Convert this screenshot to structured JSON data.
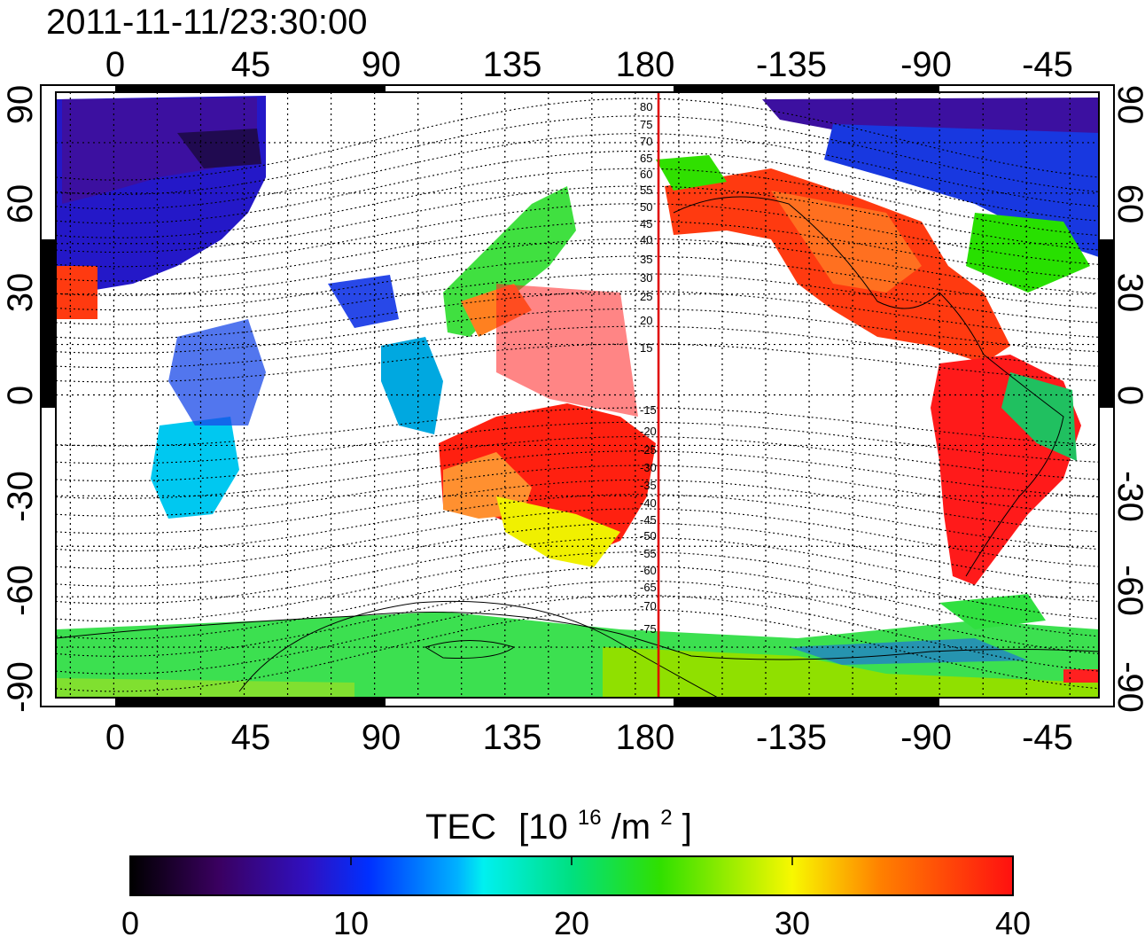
{
  "timestamp": "2011-11-11/23:30:00",
  "longitude_ticks": [
    "0",
    "45",
    "90",
    "135",
    "180",
    "-135",
    "-90",
    "-45"
  ],
  "latitude_ticks": [
    "90",
    "60",
    "30",
    "0",
    "-30",
    "-60",
    "-90"
  ],
  "colorbar": {
    "label_main": "TEC",
    "label_unit_open": "[10",
    "label_unit_exp": "16",
    "label_unit_mid": "/m",
    "label_unit_exp2": "2",
    "label_unit_close": "]",
    "ticks": [
      "0",
      "10",
      "20",
      "30",
      "40"
    ],
    "range": [
      0,
      40
    ]
  },
  "marker_line": {
    "longitude": -172,
    "color": "#e00000"
  },
  "contour_labels_north": [
    "80",
    "75",
    "70",
    "65",
    "60",
    "55",
    "50",
    "45",
    "40",
    "35",
    "30",
    "25",
    "20",
    "15"
  ],
  "contour_labels_south": [
    "-15",
    "-20",
    "-25",
    "-30",
    "-35",
    "-40",
    "-45",
    "-50",
    "-55",
    "-60",
    "-65",
    "-70",
    "-75"
  ],
  "colors": {
    "tec_scale": [
      "#220022",
      "#4a008a",
      "#1a10d8",
      "#0050ff",
      "#00e0f0",
      "#00d878",
      "#28e000",
      "#e8f000",
      "#ff9000",
      "#ff1a1a"
    ]
  }
}
